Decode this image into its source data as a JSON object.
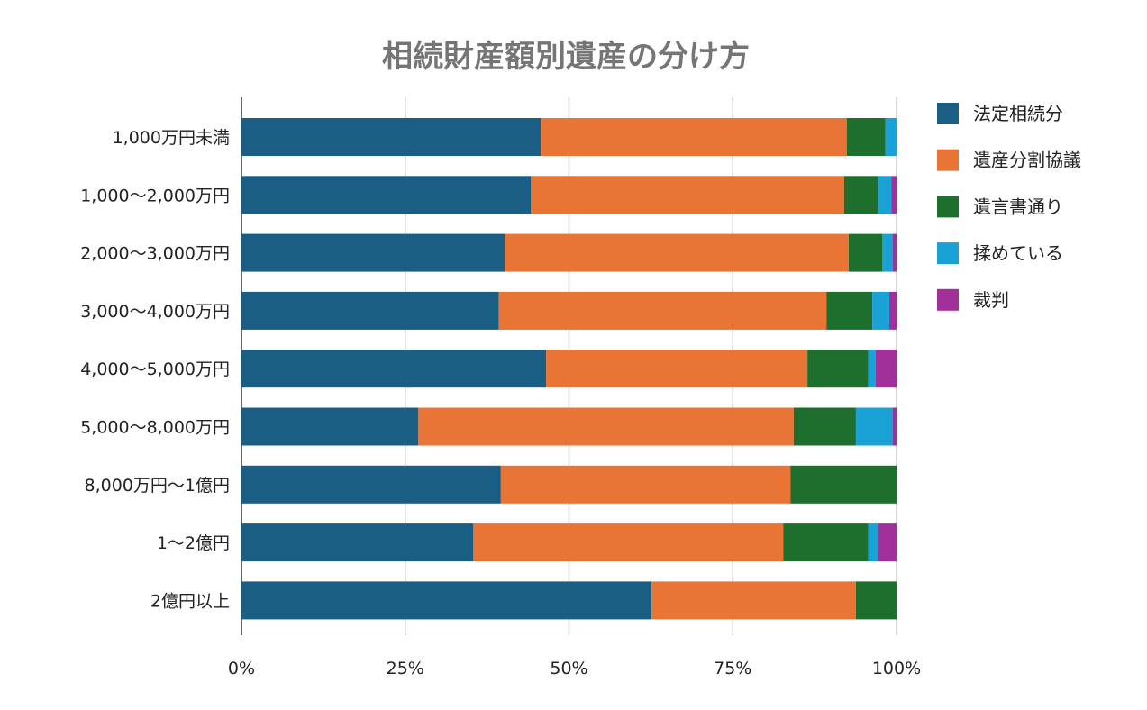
{
  "chart_data": {
    "type": "bar",
    "orientation": "horizontal",
    "stacked": "percent",
    "title": "相続財産額別遺産の分け方",
    "xlabel": "",
    "ylabel": "",
    "xlim": [
      0,
      100
    ],
    "x_ticks": [
      "0%",
      "25%",
      "50%",
      "75%",
      "100%"
    ],
    "grid": true,
    "legend_position": "right",
    "categories": [
      "1,000万円未満",
      "1,000～2,000万円",
      "2,000～3,000万円",
      "3,000～4,000万円",
      "4,000～5,000万円",
      "5,000～8,000万円",
      "8,000万円～1億円",
      "1～2億円",
      "2億円以上"
    ],
    "series": [
      {
        "name": "法定相続分",
        "color": "#1a5f83",
        "values": [
          45.7,
          44.2,
          40.2,
          39.3,
          46.5,
          27.0,
          39.6,
          35.4,
          62.6
        ]
      },
      {
        "name": "遺産分割協議",
        "color": "#e87435",
        "values": [
          46.7,
          47.8,
          52.5,
          50.0,
          39.9,
          57.3,
          44.2,
          47.3,
          31.2
        ]
      },
      {
        "name": "遺言書通り",
        "color": "#1e6e2e",
        "values": [
          5.9,
          5.2,
          5.1,
          7.0,
          9.3,
          9.5,
          16.2,
          13.0,
          6.2
        ]
      },
      {
        "name": "揉めている",
        "color": "#1aa1d6",
        "values": [
          1.7,
          2.0,
          1.6,
          2.6,
          1.1,
          5.6,
          0,
          1.5,
          0
        ]
      },
      {
        "name": "裁判",
        "color": "#a1309a",
        "values": [
          0,
          0.8,
          0.6,
          1.1,
          3.2,
          0.6,
          0,
          2.8,
          0
        ]
      }
    ]
  }
}
